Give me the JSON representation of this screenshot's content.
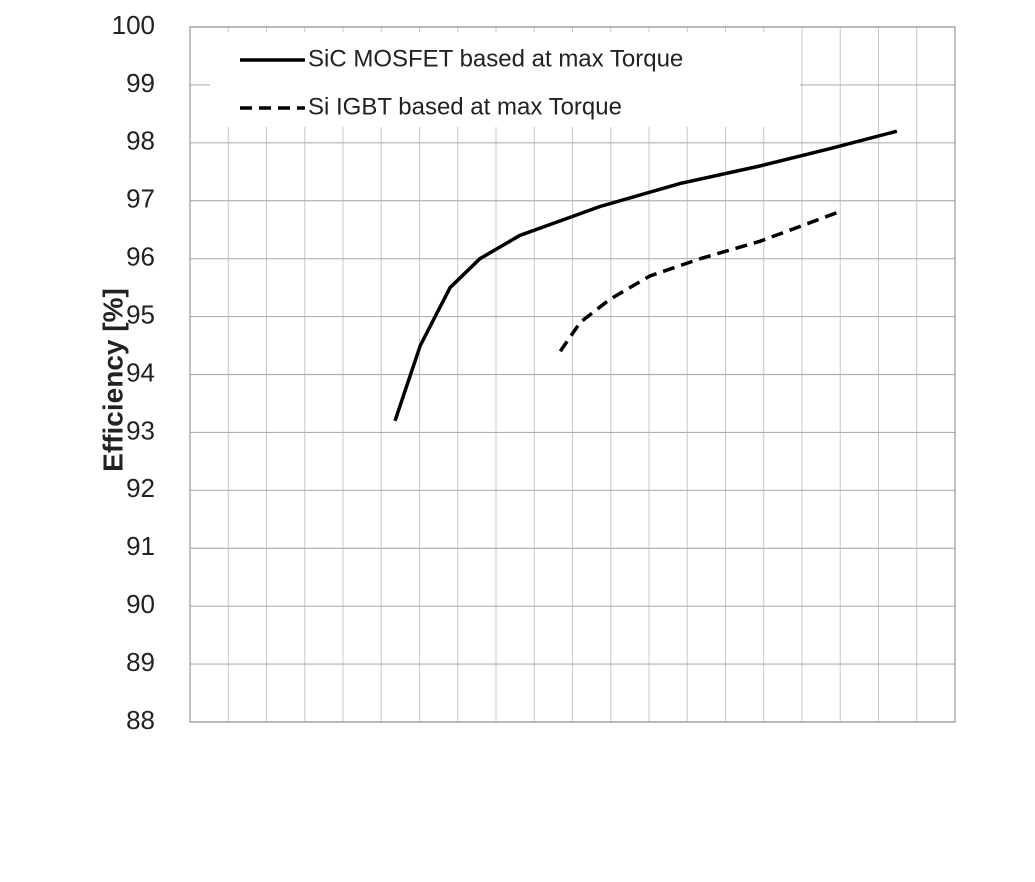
{
  "chart_data": {
    "type": "line",
    "y_label": "Efficiency [%]",
    "xlim": [
      0,
      100
    ],
    "ylim": [
      88,
      100
    ],
    "yticks": [
      88,
      89,
      90,
      91,
      92,
      93,
      94,
      95,
      96,
      97,
      98,
      99,
      100
    ],
    "grid": true,
    "legend": "upper left",
    "series": [
      {
        "name": "SiC MOSFET based at max Torque",
        "color": "#000000",
        "dash": "solid",
        "x": [
          26.8,
          30.1,
          34,
          37.9,
          43.1,
          53.6,
          64.1,
          74.5,
          83.7,
          92.4
        ],
        "values": [
          93.2,
          94.5,
          95.5,
          96.0,
          96.4,
          96.9,
          97.3,
          97.6,
          97.9,
          98.2
        ]
      },
      {
        "name": "Si IGBT based at max Torque",
        "color": "#000000",
        "dash": "dashed",
        "x": [
          48.4,
          51,
          54.9,
          60.1,
          66.7,
          74.5,
          84.7
        ],
        "values": [
          94.4,
          94.9,
          95.3,
          95.7,
          96.0,
          96.3,
          96.8
        ]
      }
    ]
  }
}
